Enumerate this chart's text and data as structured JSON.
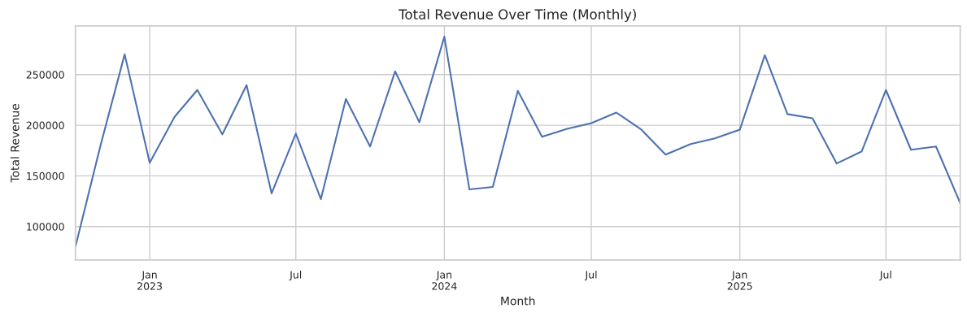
{
  "chart_data": {
    "type": "line",
    "title": "Total Revenue Over Time (Monthly)",
    "xlabel": "Month",
    "ylabel": "Total Revenue",
    "x": [
      "2022-10",
      "2022-11",
      "2022-12",
      "2023-01",
      "2023-02",
      "2023-03",
      "2023-04",
      "2023-05",
      "2023-06",
      "2023-07",
      "2023-08",
      "2023-09",
      "2023-10",
      "2023-11",
      "2023-12",
      "2024-01",
      "2024-02",
      "2024-03",
      "2024-04",
      "2024-05",
      "2024-06",
      "2024-07",
      "2024-08",
      "2024-09",
      "2024-10",
      "2024-11",
      "2024-12",
      "2025-01",
      "2025-02",
      "2025-03",
      "2025-04",
      "2025-05",
      "2025-06",
      "2025-07",
      "2025-08",
      "2025-09",
      "2025-10"
    ],
    "series": [
      {
        "color": "#4c72b0",
        "values": [
          80000,
          179800,
          270000,
          163000,
          208500,
          234800,
          191000,
          239600,
          132700,
          191800,
          127100,
          226000,
          179000,
          253200,
          203000,
          287500,
          136700,
          139100,
          234000,
          188600,
          196500,
          202100,
          212500,
          195700,
          171000,
          181400,
          187000,
          195700,
          269200,
          211000,
          206900,
          162200,
          174200,
          234800,
          175800,
          179000,
          123100
        ]
      }
    ],
    "xlim": [
      "2022-10",
      "2025-10"
    ],
    "xticks": [
      {
        "value": "2023-01",
        "label": "Jan\n2023"
      },
      {
        "value": "2023-07",
        "label": "Jul"
      },
      {
        "value": "2024-01",
        "label": "Jan\n2024"
      },
      {
        "value": "2024-07",
        "label": "Jul"
      },
      {
        "value": "2025-01",
        "label": "Jan\n2025"
      },
      {
        "value": "2025-07",
        "label": "Jul"
      }
    ],
    "ylim": [
      67000,
      298000
    ],
    "yticks": [
      100000,
      150000,
      200000,
      250000
    ],
    "grid": true,
    "line_style": "solid",
    "marker": "none"
  }
}
